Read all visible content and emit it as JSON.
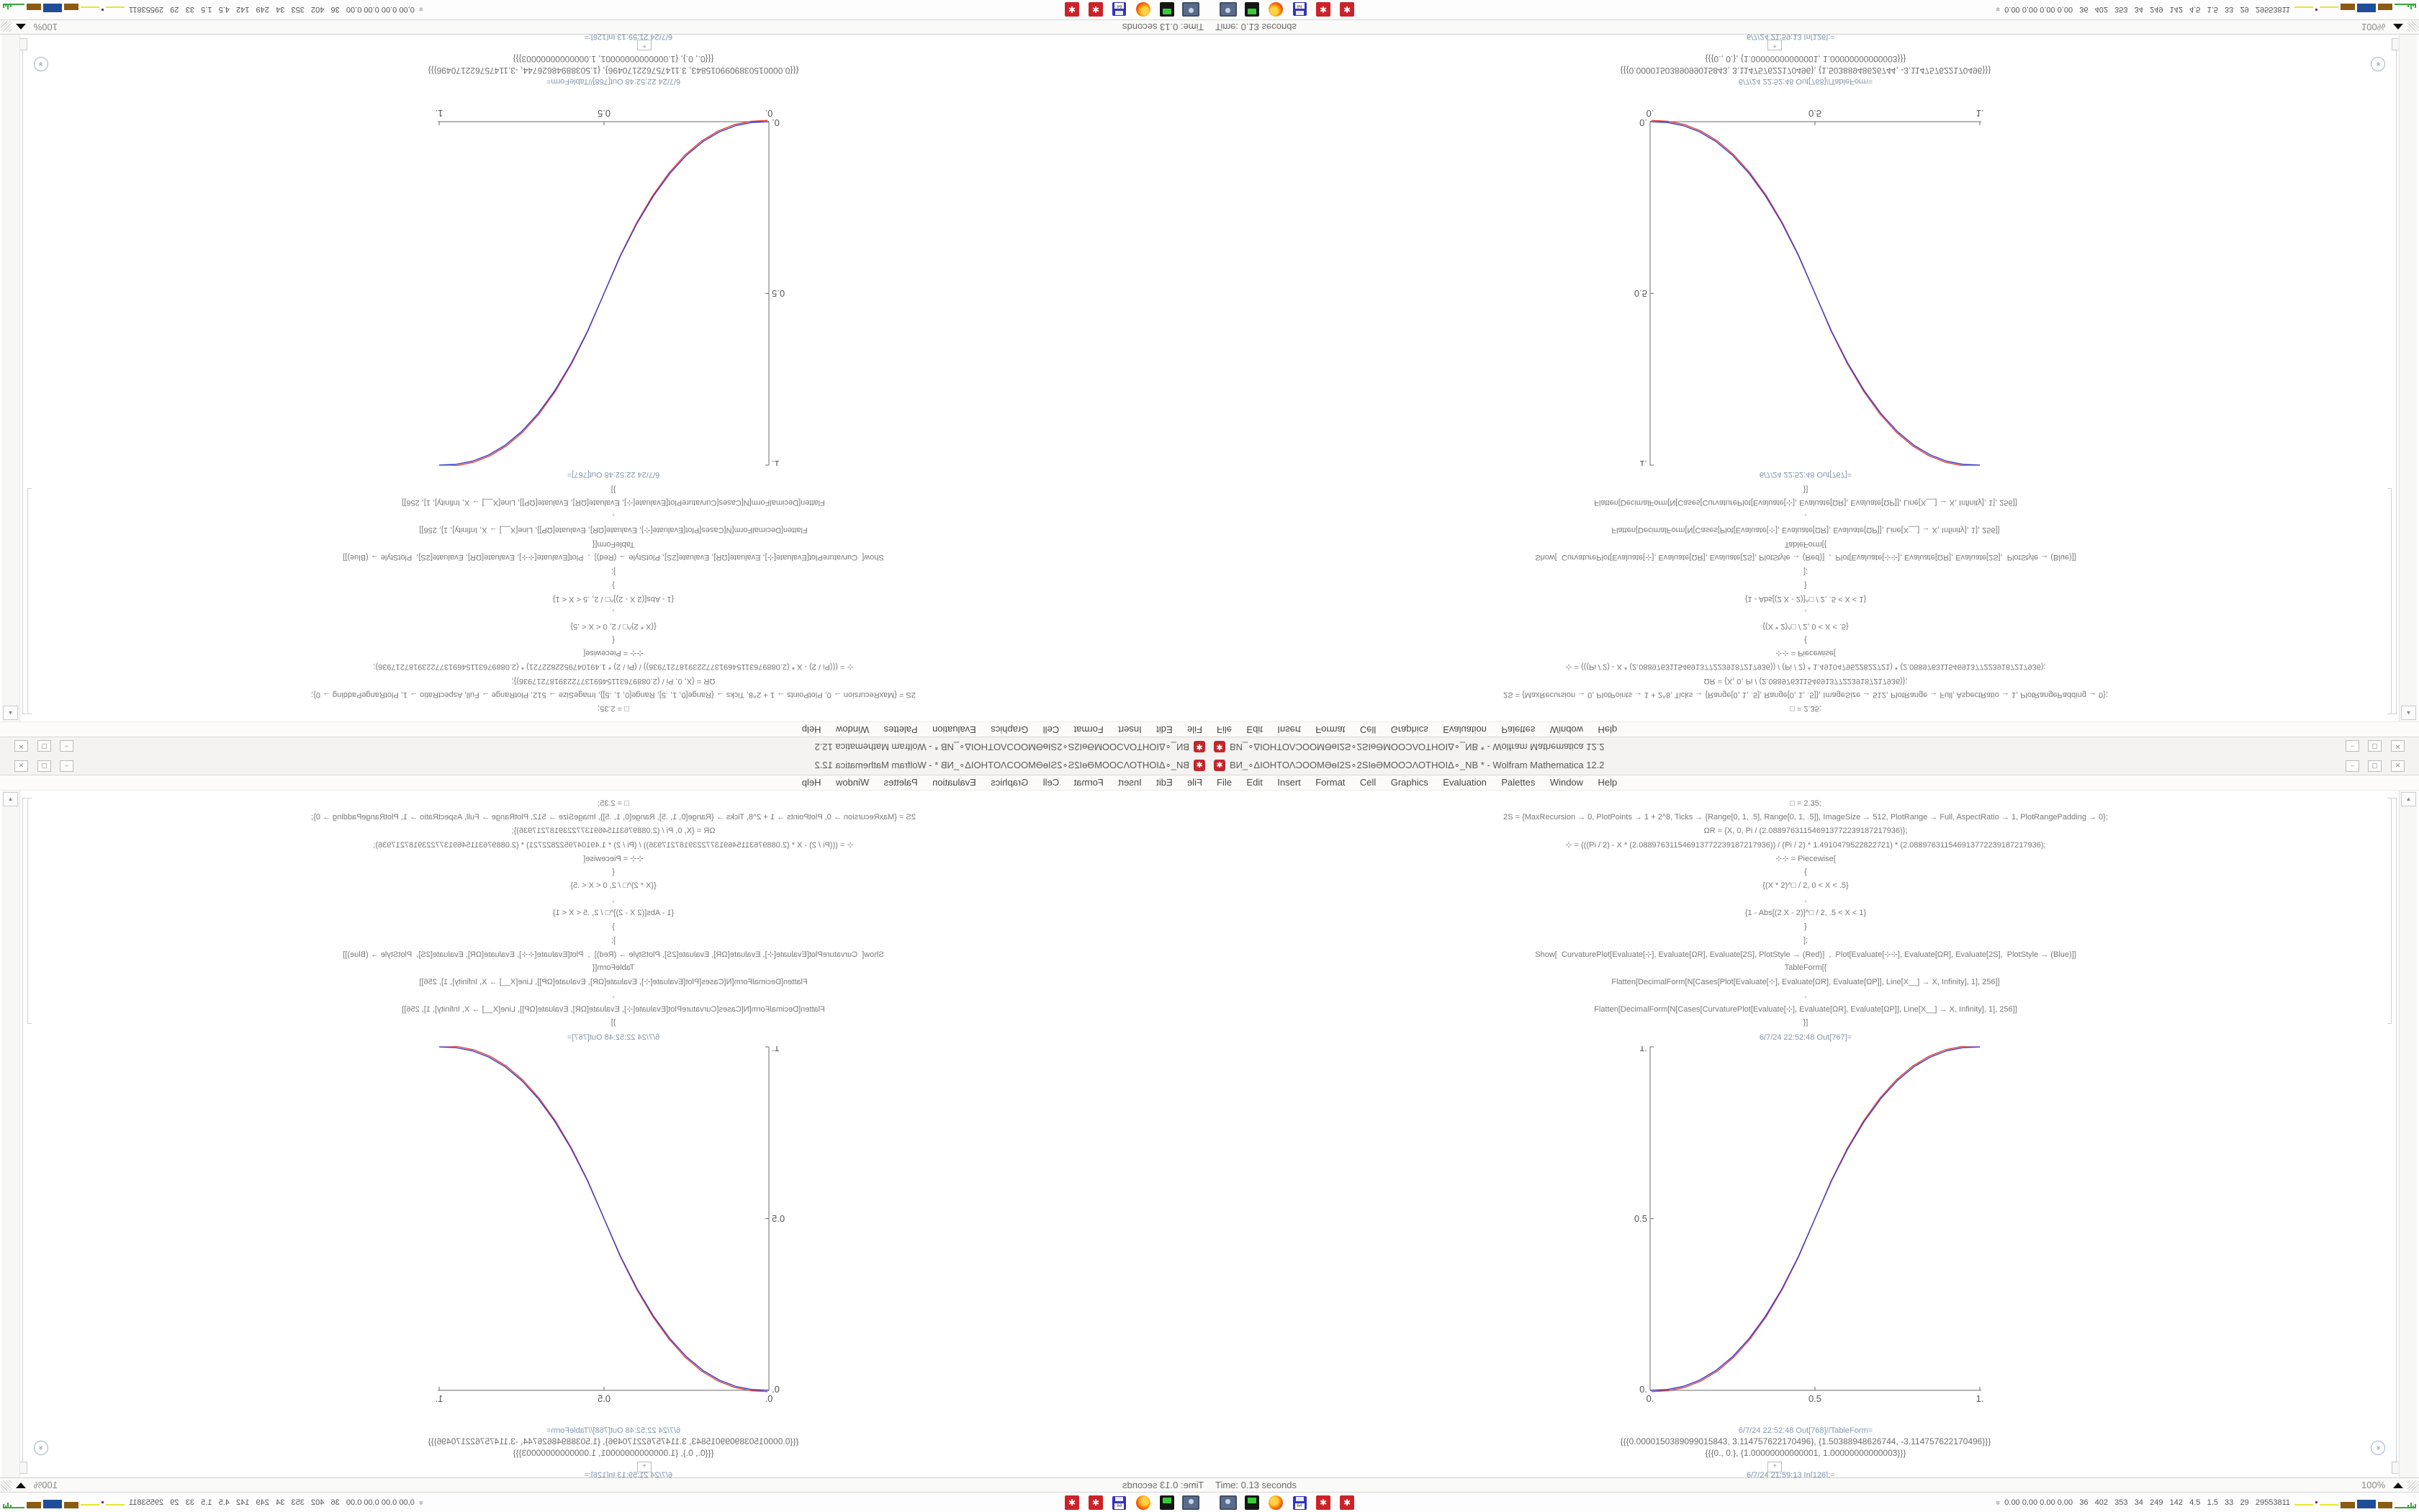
{
  "window": {
    "title": "ВИ_∘ΔΙΟΗΤΟΛϽΟΟΜӘѳΙ2Ѕ∘2ЅΙѳӘΜΟΟϽΛΟΤΗΟΙΔ∘_NB * - Wolfram Mathematica 12.2",
    "app_icon_glyph": "✱",
    "controls": {
      "minimize": "–",
      "maximize": "▢",
      "close": "✕"
    }
  },
  "menubar": {
    "items": [
      "File",
      "Edit",
      "Insert",
      "Format",
      "Cell",
      "Graphics",
      "Evaluation",
      "Palettes",
      "Window",
      "Help"
    ]
  },
  "notebook": {
    "input_lines": [
      "□ = 2.35;",
      "2S = {MaxRecursion → 0, PlotPoints → 1 + 2^8, Ticks → {Range[0, 1, .5], Range[0, 1, .5]}, ImageSize → 512, PlotRange → Full, AspectRatio → 1, PlotRangePadding → 0};",
      "ΩR = {X, 0, Pi / (2.088976311546913772239187217936)};",
      "⊹ = (((Pi / 2) - X * (2.088976311546913772239187217936)) / (Pi / 2) * 1.4910479522822721) * (2.088976311546913772239187217936);",
      "⊹⊹ = Piecewise[",
      "{",
      "{(X * 2)^□ / 2, 0 < X < .5}",
      ",",
      "{1 - Abs[(2 X - 2)]^□ / 2, .5 < X < 1}",
      "}",
      "];",
      "Show[  CurvaturePlot[Evaluate[⊹], Evaluate[ΩR], Evaluate[2S], PlotStyle → (Red)]  ,  Plot[Evaluate[⊹⊹], Evaluate[ΩR], Evaluate[2S],  PlotStyle → (Blue)]]",
      "TableForm[{",
      "Flatten[DecimalForm[N[Cases[Plot[Evaluate[⊹], Evaluate[ΩR], Evaluate[ΩP]], Line[X__] → X, Infinity], 1], 256]]",
      ",",
      "Flatten[DecimalForm[N[Cases[CurvaturePlot[Evaluate[⊹], Evaluate[ΩR], Evaluate[ΩP]], Line[X__] → X, Infinity], 1], 256]]",
      "}]"
    ],
    "out_plot_label": "6/7/24 22:52:48 Out[767]=",
    "out_table_label": "6/7/24 22:52:48 Out[768]//TableForm=",
    "table_rows": [
      "{{{0.0000150389099015843, 3.114757622170496}, {1.50388948626744, -3.114757622170496}}}",
      "{{{0., 0.}, {1.00000000000001, 1.00000000000003}}}"
    ],
    "next_in_label": "6/7/24 21:59:13 In[126]:=",
    "insert_plus": "+"
  },
  "chart_data": {
    "type": "line",
    "title": "",
    "xlabel": "",
    "ylabel": "",
    "xlim": [
      0,
      1
    ],
    "ylim": [
      0,
      1
    ],
    "xticks": [
      "0.",
      "0.5",
      "1."
    ],
    "yticks": [
      "1.",
      "0.5",
      "0."
    ],
    "grid": false,
    "legend": "none",
    "frame": "left-bottom-axes-only",
    "x": [
      0,
      0.05,
      0.1,
      0.15,
      0.2,
      0.25,
      0.3,
      0.35,
      0.4,
      0.45,
      0.5,
      0.55,
      0.6,
      0.65,
      0.7,
      0.75,
      0.8,
      0.85,
      0.9,
      0.95,
      1
    ],
    "series": [
      {
        "name": "CurvaturePlot ⊹ (Red)",
        "color": "#e04038",
        "values": [
          0,
          0.0022,
          0.0114,
          0.0295,
          0.058,
          0.098,
          0.1505,
          0.2162,
          0.296,
          0.3904,
          0.5,
          0.6096,
          0.704,
          0.7838,
          0.8495,
          0.902,
          0.942,
          0.9705,
          0.9886,
          0.9978,
          1
        ]
      },
      {
        "name": "Plot ⊹⊹ (Blue)",
        "color": "#3c3cc8",
        "values": [
          0,
          0.0022,
          0.0114,
          0.0295,
          0.058,
          0.098,
          0.1505,
          0.2162,
          0.296,
          0.3904,
          0.5,
          0.6096,
          0.704,
          0.7838,
          0.8495,
          0.902,
          0.942,
          0.9705,
          0.9886,
          0.9978,
          1
        ]
      }
    ]
  },
  "statusbar": {
    "time_text": "Time: 0.13 seconds",
    "magnification": "100%",
    "dropdown_glyph": "▾"
  },
  "taskbar": {
    "icons": [
      "screen-capture-icon",
      "system-monitor-icon",
      "firefox-icon",
      "floppy-save-icon",
      "mathematica-icon",
      "mathematica-icon"
    ],
    "floppy_label": "64",
    "mathematica_glyph": "✱",
    "tray_chevron": "»",
    "tray_text": "0.00 0.00 0.00 0.00   36   402   353   34   249   142   4.5   1.5   33   29   29553811"
  },
  "colors": {
    "accent_red": "#c1272d",
    "curve_red": "#e04038",
    "curve_blue": "#3c3cc8",
    "label_blue_gray": "#8596ab",
    "tray_yellow": "#e6e62e",
    "tray_brown": "#8b5a13",
    "tray_blue": "#1f4e99",
    "tray_green": "#3aa63a",
    "tray_purple": "#7030a0"
  }
}
